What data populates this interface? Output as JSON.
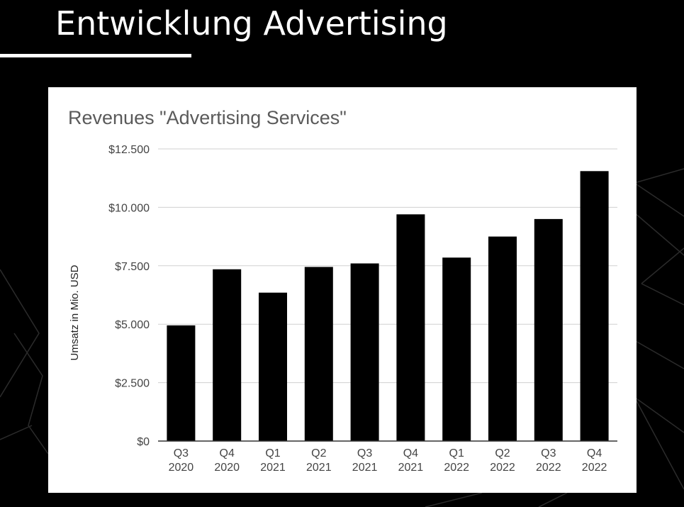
{
  "slide": {
    "title": "Entwicklung Advertising"
  },
  "colors": {
    "background": "#000000",
    "card": "#ffffff",
    "bar": "#000000",
    "grid": "#d0d0d0",
    "axis_text": "#444444",
    "chart_title": "#5a5a5a"
  },
  "chart_data": {
    "type": "bar",
    "title": "Revenues \"Advertising Services\"",
    "xlabel": "",
    "ylabel": "Umsatz in Mio. USD",
    "ylim": [
      0,
      12500
    ],
    "yticks": [
      0,
      2500,
      5000,
      7500,
      10000,
      12500
    ],
    "ytick_labels": [
      "$0",
      "$2.500",
      "$5.000",
      "$7.500",
      "$10.000",
      "$12.500"
    ],
    "categories": [
      [
        "Q3",
        "2020"
      ],
      [
        "Q4",
        "2020"
      ],
      [
        "Q1",
        "2021"
      ],
      [
        "Q2",
        "2021"
      ],
      [
        "Q3",
        "2021"
      ],
      [
        "Q4",
        "2021"
      ],
      [
        "Q1",
        "2022"
      ],
      [
        "Q2",
        "2022"
      ],
      [
        "Q3",
        "2022"
      ],
      [
        "Q4",
        "2022"
      ]
    ],
    "values": [
      4950,
      7350,
      6350,
      7450,
      7600,
      9700,
      7850,
      8750,
      9500,
      11550
    ],
    "grid": true,
    "legend": "none"
  }
}
